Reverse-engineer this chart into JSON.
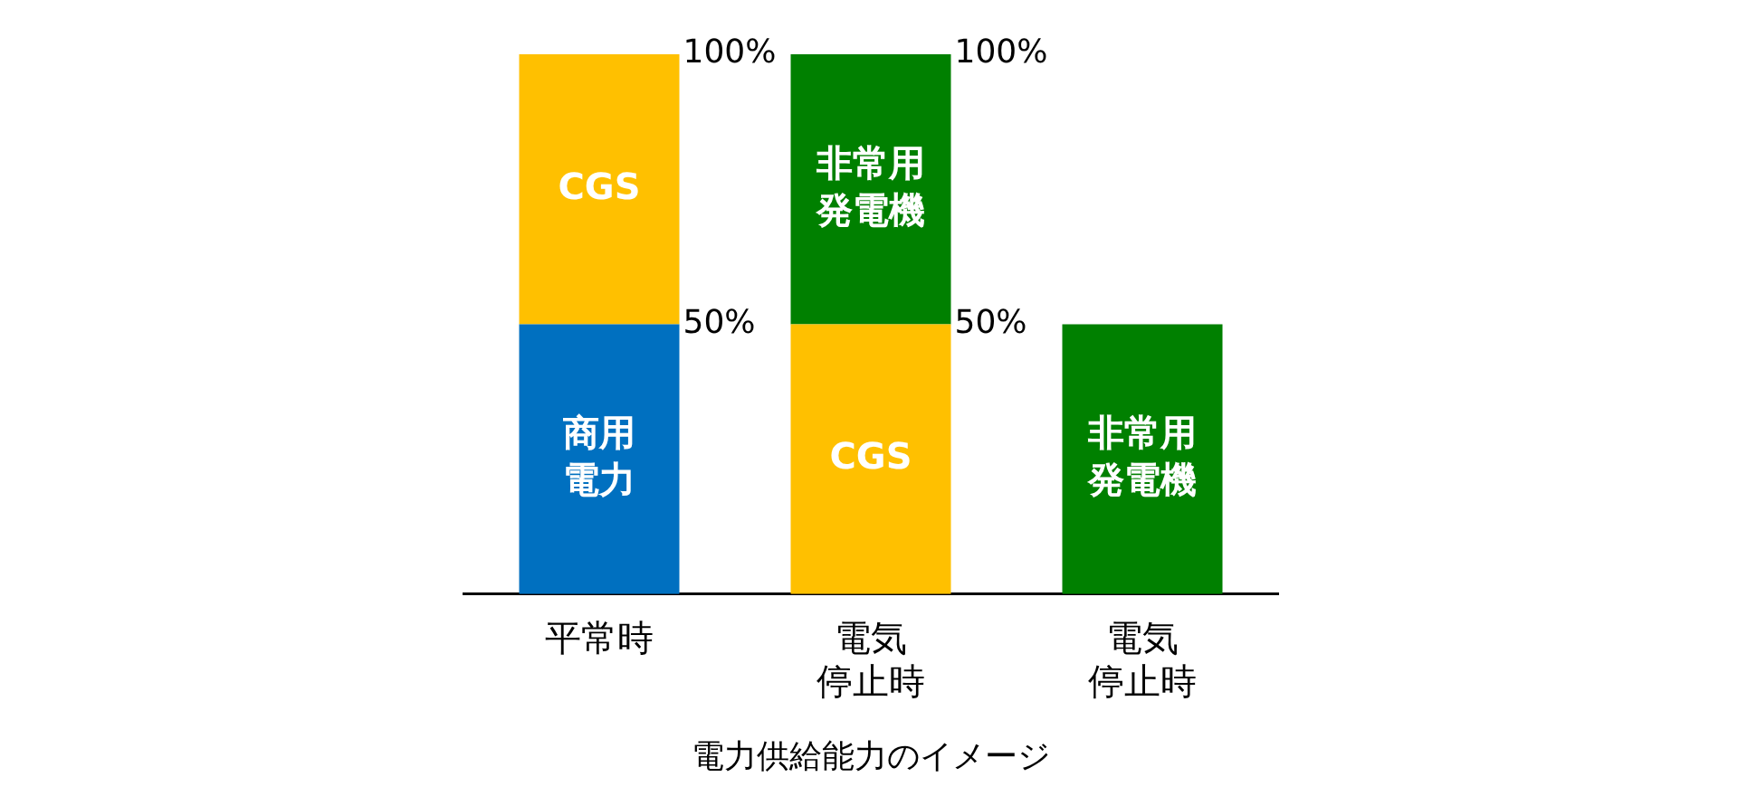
{
  "chart_data": {
    "type": "bar",
    "xlabel": "電力供給能力のイメージ",
    "categories": [
      "平常時",
      "電気停止時",
      "電気停止時"
    ],
    "series": [
      {
        "name": "商用電力",
        "color": "#0070c0",
        "values": [
          50,
          null,
          null
        ],
        "base": [
          0,
          null,
          null
        ]
      },
      {
        "name": "CGS",
        "color": "#ffc000",
        "values": [
          50,
          50,
          null
        ],
        "base": [
          50,
          0,
          null
        ]
      },
      {
        "name": "非常用発電機",
        "color": "#008000",
        "values": [
          null,
          50,
          50
        ],
        "base": [
          null,
          50,
          0
        ]
      }
    ],
    "ylim": [
      0,
      100
    ],
    "yticks": [
      {
        "value": 50,
        "label": "50%"
      },
      {
        "value": 100,
        "label": "100%"
      }
    ],
    "grid": false,
    "legend": false
  }
}
